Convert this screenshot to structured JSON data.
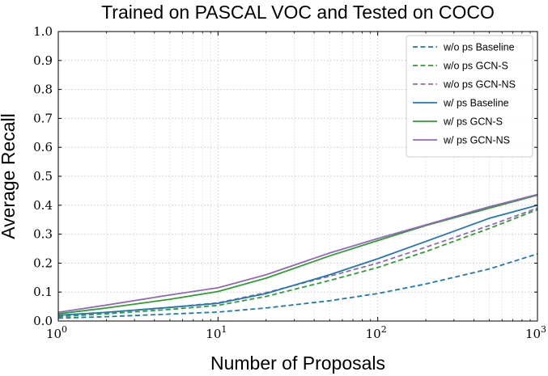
{
  "chart_data": {
    "type": "line",
    "title": "Trained on PASCAL VOC and Tested on COCO",
    "xlabel": "Number of Proposals",
    "ylabel": "Average Recall",
    "xscale": "log",
    "xlim": [
      1,
      1000
    ],
    "ylim": [
      0.0,
      1.0
    ],
    "x_ticks": [
      {
        "value": 1,
        "base": "10",
        "exp": "0"
      },
      {
        "value": 10,
        "base": "10",
        "exp": "1"
      },
      {
        "value": 100,
        "base": "10",
        "exp": "2"
      },
      {
        "value": 1000,
        "base": "10",
        "exp": "3"
      }
    ],
    "y_ticks": [
      "0.0",
      "0.1",
      "0.2",
      "0.3",
      "0.4",
      "0.5",
      "0.6",
      "0.7",
      "0.8",
      "0.9",
      "1.0"
    ],
    "grid": true,
    "legend_position": "top-right",
    "series": [
      {
        "name": "w/o ps Baseline",
        "color": "#1f77b4",
        "dash": "dashed",
        "x": [
          1,
          2,
          5,
          10,
          20,
          50,
          100,
          200,
          500,
          1000
        ],
        "y": [
          0.01,
          0.015,
          0.024,
          0.031,
          0.045,
          0.07,
          0.095,
          0.128,
          0.18,
          0.232
        ]
      },
      {
        "name": "w/o ps GCN-S",
        "color": "#2ca02c",
        "dash": "dashed",
        "x": [
          1,
          2,
          5,
          10,
          20,
          50,
          100,
          200,
          500,
          1000
        ],
        "y": [
          0.015,
          0.025,
          0.04,
          0.054,
          0.085,
          0.14,
          0.185,
          0.24,
          0.32,
          0.385
        ]
      },
      {
        "name": "w/o ps GCN-NS",
        "color": "#9467bd",
        "dash": "dashed",
        "x": [
          1,
          2,
          5,
          10,
          20,
          50,
          100,
          200,
          500,
          1000
        ],
        "y": [
          0.02,
          0.03,
          0.047,
          0.063,
          0.098,
          0.155,
          0.2,
          0.255,
          0.33,
          0.39
        ]
      },
      {
        "name": "w/ ps Baseline",
        "color": "#1f77b4",
        "dash": "solid",
        "x": [
          1,
          2,
          5,
          10,
          20,
          50,
          100,
          200,
          500,
          1000
        ],
        "y": [
          0.02,
          0.03,
          0.047,
          0.061,
          0.095,
          0.16,
          0.215,
          0.275,
          0.355,
          0.4
        ]
      },
      {
        "name": "w/ ps GCN-S",
        "color": "#2ca02c",
        "dash": "solid",
        "x": [
          1,
          2,
          5,
          10,
          20,
          50,
          100,
          200,
          500,
          1000
        ],
        "y": [
          0.025,
          0.045,
          0.075,
          0.102,
          0.148,
          0.225,
          0.278,
          0.33,
          0.39,
          0.435
        ]
      },
      {
        "name": "w/ ps GCN-NS",
        "color": "#9467bd",
        "dash": "solid",
        "x": [
          1,
          2,
          5,
          10,
          20,
          50,
          100,
          200,
          500,
          1000
        ],
        "y": [
          0.03,
          0.055,
          0.09,
          0.115,
          0.16,
          0.235,
          0.285,
          0.332,
          0.395,
          0.437
        ]
      }
    ]
  }
}
